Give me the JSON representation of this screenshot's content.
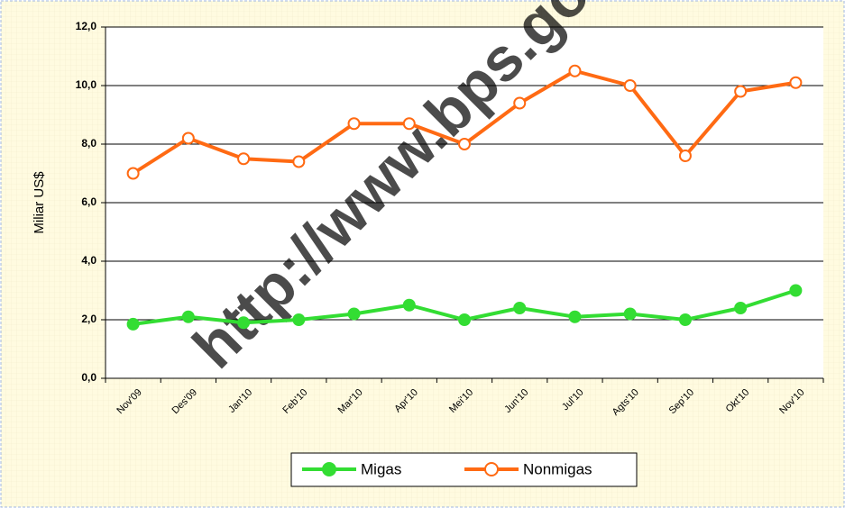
{
  "chart_data": {
    "type": "line",
    "y_label": "Miliar US$",
    "watermark": "http://www.bps.go.id",
    "categories": [
      "Nov'09",
      "Des'09",
      "Jan'10",
      "Feb'10",
      "Mar'10",
      "Apr'10",
      "Mei'10",
      "Jun'10",
      "Jul'10",
      "Agts'10",
      "Sep'10",
      "Okt'10",
      "Nov'10"
    ],
    "series": [
      {
        "name": "Migas",
        "color": "#33dd33",
        "marker": "filled",
        "values": [
          1.85,
          2.1,
          1.9,
          2.0,
          2.2,
          2.5,
          2.0,
          2.4,
          2.1,
          2.2,
          2.0,
          2.4,
          3.0
        ]
      },
      {
        "name": "Nonmigas",
        "color": "#ff6a13",
        "marker": "hollow",
        "values": [
          7.0,
          8.2,
          7.5,
          7.4,
          8.7,
          8.7,
          8.0,
          9.4,
          10.5,
          10.0,
          7.6,
          9.8,
          10.1
        ]
      }
    ],
    "ylim": [
      0,
      12
    ],
    "yticks": [
      {
        "value": 0,
        "label": "0,0"
      },
      {
        "value": 2,
        "label": "2,0"
      },
      {
        "value": 4,
        "label": "4,0"
      },
      {
        "value": 6,
        "label": "6,0"
      },
      {
        "value": 8,
        "label": "8,0"
      },
      {
        "value": 10,
        "label": "10,0"
      },
      {
        "value": 12,
        "label": "12,0"
      }
    ],
    "grid": true,
    "legend": "bottom"
  }
}
